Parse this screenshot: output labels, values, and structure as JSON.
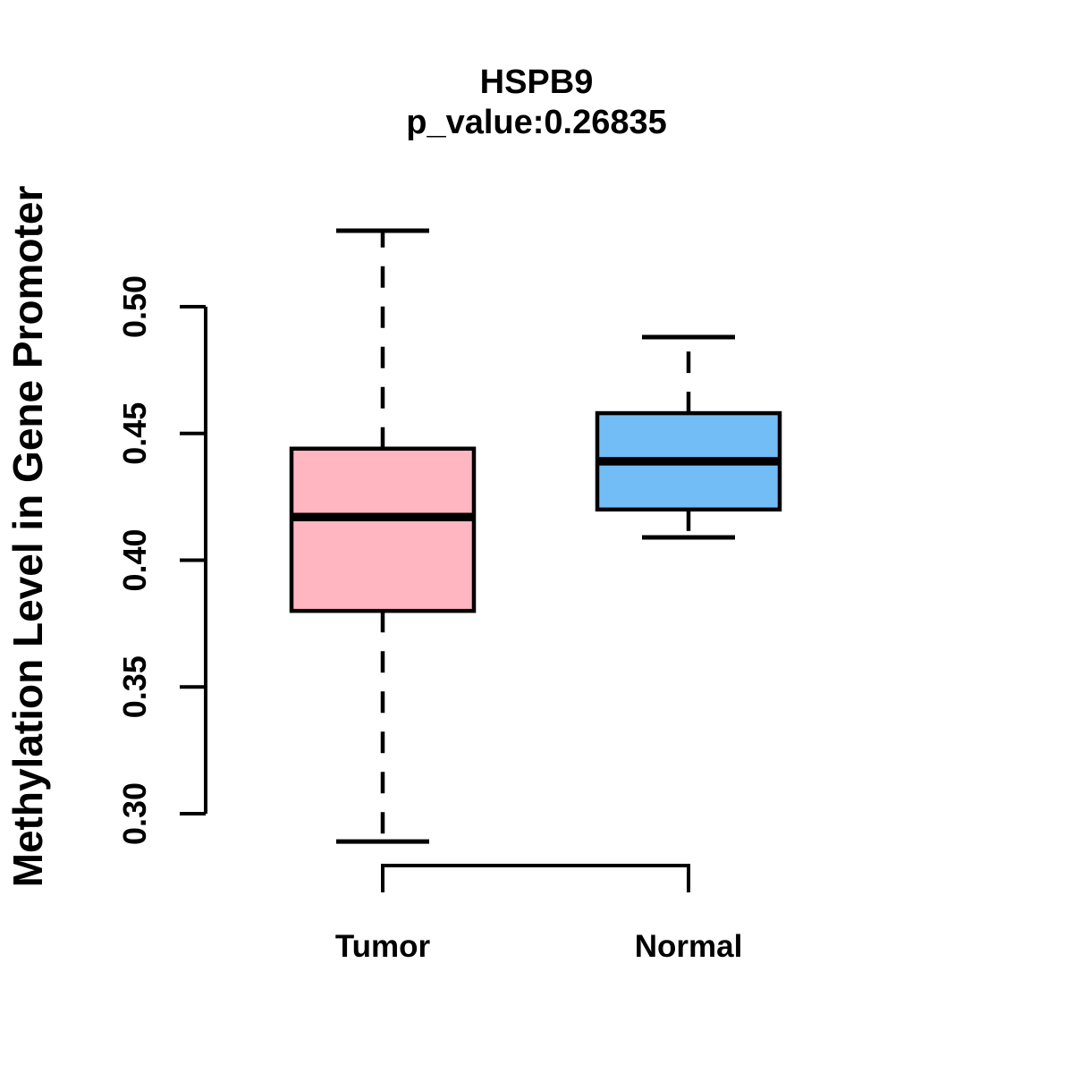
{
  "chart_data": {
    "type": "boxplot",
    "title": "HSPB9",
    "subtitle": "p_value:0.26835",
    "p_value": 0.26835,
    "ylabel": "Methylation Level in Gene Promoter",
    "xlabel": "",
    "categories": [
      "Tumor",
      "Normal"
    ],
    "ylim": [
      0.3,
      0.5
    ],
    "yticks": [
      0.3,
      0.35,
      0.4,
      0.45,
      0.5
    ],
    "grid": false,
    "legend_position": "none",
    "axis_color": "#000000",
    "series": [
      {
        "name": "Tumor",
        "color": "#FFB6C1",
        "lower_whisker": 0.289,
        "q1": 0.38,
        "median": 0.417,
        "q3": 0.444,
        "upper_whisker": 0.53,
        "outliers": []
      },
      {
        "name": "Normal",
        "color": "#73BDF6",
        "lower_whisker": 0.409,
        "q1": 0.42,
        "median": 0.439,
        "q3": 0.458,
        "upper_whisker": 0.488,
        "outliers": []
      }
    ]
  }
}
